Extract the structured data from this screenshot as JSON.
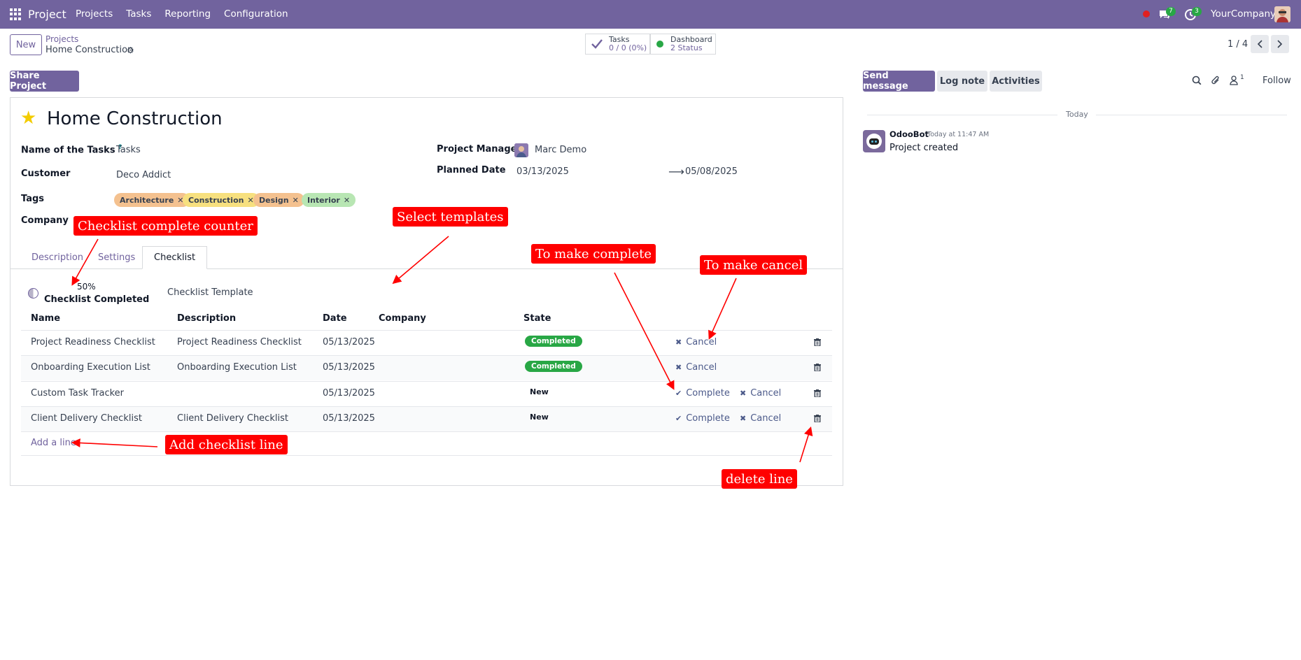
{
  "navbar": {
    "brand": "Project",
    "menu": [
      "Projects",
      "Tasks",
      "Reporting",
      "Configuration"
    ],
    "messages_count": "7",
    "activities_count": "3",
    "company": "YourCompany"
  },
  "control_panel": {
    "new_label": "New",
    "breadcrumb_parent": "Projects",
    "breadcrumb_current": "Home Construction",
    "smart_tasks_label": "Tasks",
    "smart_tasks_value": "0 / 0 (0%)",
    "smart_dashboard_label": "Dashboard",
    "smart_dashboard_value": "2 Status",
    "pager": "1 / 4"
  },
  "form": {
    "share_label": "Share Project",
    "title": "Home Construction",
    "tasks_label": "Name of the Tasks",
    "tasks_help": "?",
    "tasks_value": "Tasks",
    "customer_label": "Customer",
    "customer_value": "Deco Addict",
    "tags_label": "Tags",
    "tags": [
      {
        "name": "Architecture",
        "color": "#f4c18f"
      },
      {
        "name": "Construction",
        "color": "#f7e07f"
      },
      {
        "name": "Design",
        "color": "#f4c18f"
      },
      {
        "name": "Interior",
        "color": "#b8e6b3"
      }
    ],
    "company_label": "Company",
    "pm_label": "Project Manager",
    "pm_value": "Marc Demo",
    "planned_label": "Planned Date",
    "planned_start": "03/13/2025",
    "planned_end": "05/08/2025"
  },
  "tabs": [
    "Description",
    "Settings",
    "Checklist"
  ],
  "checklist": {
    "percent": "50%",
    "completed_label": "Checklist Completed",
    "template_label": "Checklist Template",
    "columns": [
      "Name",
      "Description",
      "Date",
      "Company",
      "State"
    ],
    "rows": [
      {
        "name": "Project Readiness Checklist",
        "description": "Project Readiness Checklist",
        "date": "05/13/2025",
        "state": "Completed"
      },
      {
        "name": "Onboarding Execution List",
        "description": "Onboarding Execution List",
        "date": "05/13/2025",
        "state": "Completed"
      },
      {
        "name": "Custom Task Tracker",
        "description": "",
        "date": "05/13/2025",
        "state": "New"
      },
      {
        "name": "Client Delivery Checklist",
        "description": "Client Delivery Checklist",
        "date": "05/13/2025",
        "state": "New"
      }
    ],
    "complete_label": "Complete",
    "cancel_label": "Cancel",
    "add_line": "Add a line"
  },
  "chatter": {
    "send_message": "Send message",
    "log_note": "Log note",
    "activities": "Activities",
    "followers_count": "1",
    "follow": "Follow",
    "today": "Today",
    "author": "OdooBot",
    "time": "Today at 11:47 AM",
    "message": "Project created"
  },
  "annotations": {
    "counter": "Checklist complete counter",
    "templates": "Select templates",
    "complete": "To make complete",
    "cancel": "To make cancel",
    "add_line": "Add checklist line",
    "delete": "delete line"
  }
}
